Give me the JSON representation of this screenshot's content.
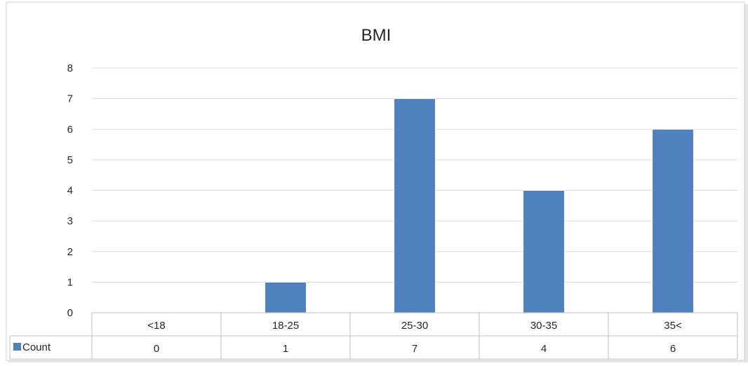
{
  "chart_data": {
    "type": "bar",
    "title": "BMI",
    "categories": [
      "<18",
      "18-25",
      "25-30",
      "30-35",
      "35<"
    ],
    "series": [
      {
        "name": "Count",
        "values": [
          0,
          1,
          7,
          4,
          6
        ],
        "color": "#4F81BD"
      }
    ],
    "ylim": [
      0,
      8
    ],
    "yticks": [
      0,
      1,
      2,
      3,
      4,
      5,
      6,
      7,
      8
    ],
    "grid": true,
    "legend": "data-table-left",
    "data_table": true
  }
}
